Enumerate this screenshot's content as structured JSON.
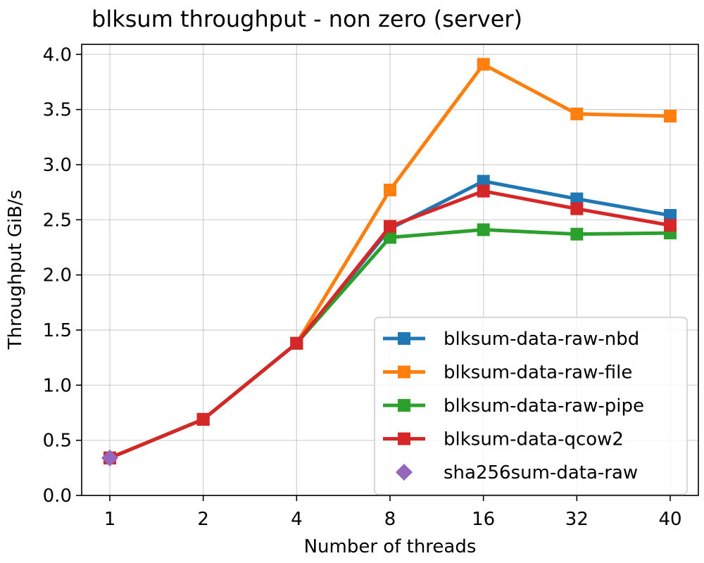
{
  "chart_data": {
    "type": "line",
    "title": "blksum throughput - non zero (server)",
    "xlabel": "Number of threads",
    "ylabel": "Throughput GiB/s",
    "categories": [
      "1",
      "2",
      "4",
      "8",
      "16",
      "32",
      "40"
    ],
    "ylim": [
      0,
      4.0
    ],
    "yticks": [
      "0.0",
      "0.5",
      "1.0",
      "1.5",
      "2.0",
      "2.5",
      "3.0",
      "3.5",
      "4.0"
    ],
    "grid": true,
    "legend_position": "lower-right",
    "series": [
      {
        "name": "blksum-data-raw-nbd",
        "color": "#1f77b4",
        "marker": "square",
        "values": [
          0.34,
          0.69,
          1.38,
          2.42,
          2.85,
          2.69,
          2.54
        ]
      },
      {
        "name": "blksum-data-raw-file",
        "color": "#ff7f0e",
        "marker": "square",
        "values": [
          0.34,
          0.69,
          1.38,
          2.77,
          3.91,
          3.46,
          3.44
        ]
      },
      {
        "name": "blksum-data-raw-pipe",
        "color": "#2ca02c",
        "marker": "square",
        "values": [
          0.34,
          0.69,
          1.38,
          2.34,
          2.41,
          2.37,
          2.38
        ]
      },
      {
        "name": "blksum-data-qcow2",
        "color": "#d62728",
        "marker": "square",
        "values": [
          0.34,
          0.69,
          1.38,
          2.44,
          2.76,
          2.6,
          2.45
        ]
      },
      {
        "name": "sha256sum-data-raw",
        "color": "#9467bd",
        "marker": "diamond",
        "points": [
          {
            "x": "1",
            "y": 0.34
          }
        ]
      }
    ]
  }
}
